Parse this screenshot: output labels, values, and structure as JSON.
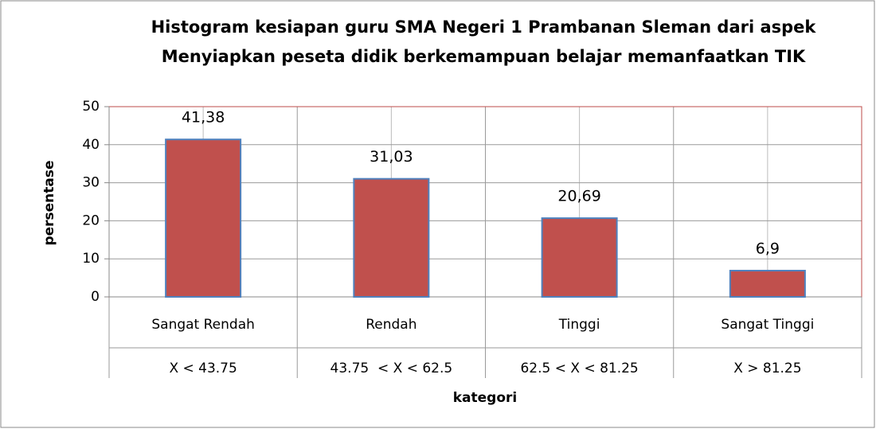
{
  "chart_data": {
    "type": "bar",
    "title": [
      "Histogram kesiapan guru SMA Negeri 1 Prambanan Sleman dari aspek",
      "Menyiapkan peseta didik berkemampuan belajar memanfaatkan TIK"
    ],
    "categories": [
      "Sangat Rendah",
      "Rendah",
      "Tinggi",
      "Sangat Tinggi"
    ],
    "category_ranges": [
      "X < 43.75",
      "43.75  < X < 62.5",
      "62.5 < X < 81.25",
      "X > 81.25"
    ],
    "values": [
      41.38,
      31.03,
      20.69,
      6.9
    ],
    "value_labels": [
      "41,38",
      "31,03",
      "20,69",
      "6,9"
    ],
    "color": "#c0504d",
    "x_label": "kategori",
    "y_label": "persentase",
    "ylim": [
      0,
      50
    ],
    "yticks": [
      0,
      10,
      20,
      30,
      40,
      50
    ],
    "grid": true
  }
}
